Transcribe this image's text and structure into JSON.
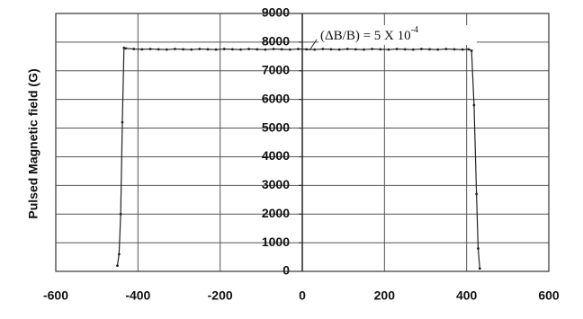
{
  "chart_data": {
    "type": "line",
    "ylabel": "Pulsed Magnetic field (G)",
    "annotation": {
      "text": "(ΔB/B) = 5 X 10",
      "exponent": "-4"
    },
    "x": [
      -450,
      -446,
      -442,
      -438,
      -434,
      -430,
      -410,
      -390,
      -370,
      -350,
      -330,
      -310,
      -290,
      -270,
      -250,
      -230,
      -210,
      -190,
      -170,
      -150,
      -130,
      -110,
      -90,
      -70,
      -50,
      -30,
      -10,
      10,
      30,
      50,
      70,
      90,
      110,
      130,
      150,
      170,
      190,
      210,
      230,
      250,
      270,
      290,
      310,
      330,
      350,
      370,
      390,
      405,
      412,
      418,
      424,
      428,
      432
    ],
    "values": [
      200,
      600,
      2000,
      5200,
      7800,
      7780,
      7760,
      7750,
      7760,
      7750,
      7740,
      7760,
      7750,
      7740,
      7760,
      7750,
      7740,
      7760,
      7750,
      7740,
      7760,
      7750,
      7740,
      7760,
      7750,
      7740,
      7760,
      7750,
      7740,
      7760,
      7750,
      7740,
      7760,
      7750,
      7740,
      7760,
      7750,
      7740,
      7760,
      7750,
      7740,
      7760,
      7750,
      7740,
      7760,
      7750,
      7740,
      7750,
      7700,
      5800,
      2700,
      800,
      100
    ],
    "color": "#222222",
    "xlim": [
      -600,
      600
    ],
    "xticks": [
      -600,
      -400,
      -200,
      0,
      200,
      400,
      600
    ],
    "ylim": [
      0,
      9000
    ],
    "yticks": [
      0,
      1000,
      2000,
      3000,
      4000,
      5000,
      6000,
      7000,
      8000,
      9000
    ],
    "grid": true
  }
}
